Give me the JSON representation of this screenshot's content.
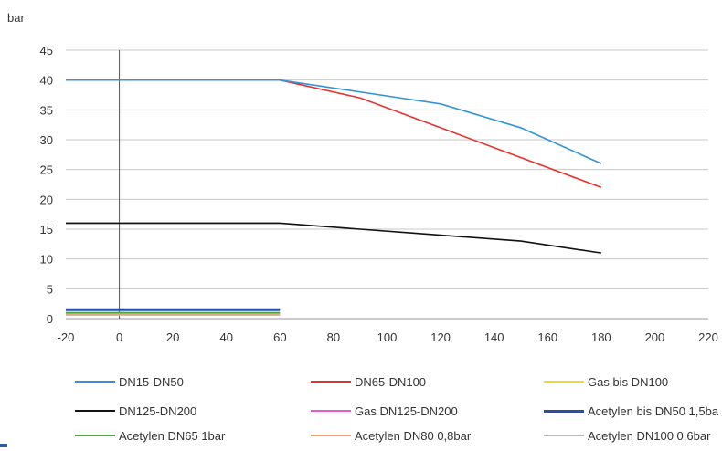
{
  "chart_data": {
    "type": "line",
    "ylabel": "bar",
    "xlim": [
      -20,
      220
    ],
    "ylim": [
      0,
      45
    ],
    "x_ticks": [
      "-20",
      "0",
      "20",
      "40",
      "60",
      "80",
      "100",
      "120",
      "140",
      "160",
      "180",
      "200",
      "220"
    ],
    "y_ticks": [
      "0",
      "5",
      "10",
      "15",
      "20",
      "25",
      "30",
      "35",
      "40",
      "45"
    ],
    "grid": "horizontal",
    "legend_position": "bottom",
    "series": [
      {
        "name": "DN15-DN50",
        "color": "#2f95d8",
        "x": [
          -20,
          60,
          90,
          120,
          150,
          180
        ],
        "y": [
          40,
          40,
          38,
          36,
          32,
          26
        ]
      },
      {
        "name": "DN65-DN100",
        "color": "#e8312a",
        "x": [
          -20,
          60,
          90,
          120,
          150,
          180
        ],
        "y": [
          40,
          40,
          37,
          32,
          27,
          22
        ]
      },
      {
        "name": "Gas bis DN100",
        "color": "#f5d726",
        "x": [
          -20,
          60
        ],
        "y": [
          40,
          40
        ]
      },
      {
        "name": "DN125-DN200",
        "color": "#111111",
        "x": [
          -20,
          60,
          90,
          120,
          150,
          180
        ],
        "y": [
          16,
          16,
          15,
          14,
          13,
          11
        ]
      },
      {
        "name": "Gas DN125-DN200",
        "color": "#e45ad6",
        "x": [
          -20,
          60
        ],
        "y": [
          16,
          16
        ]
      },
      {
        "name": "Acetylen bis DN50 1,5ba",
        "color": "#2b4fa0",
        "x": [
          -20,
          60
        ],
        "y": [
          1.5,
          1.5
        ]
      },
      {
        "name": "Acetylen DN65 1bar",
        "color": "#4aa83a",
        "x": [
          -20,
          60
        ],
        "y": [
          1,
          1
        ]
      },
      {
        "name": "Acetylen DN80 0,8bar",
        "color": "#f29a6e",
        "x": [
          -20,
          60
        ],
        "y": [
          0.8,
          0.8
        ]
      },
      {
        "name": "Acetylen DN100 0,6bar",
        "color": "#b8b8b8",
        "x": [
          -20,
          60
        ],
        "y": [
          0.6,
          0.6
        ]
      }
    ]
  }
}
